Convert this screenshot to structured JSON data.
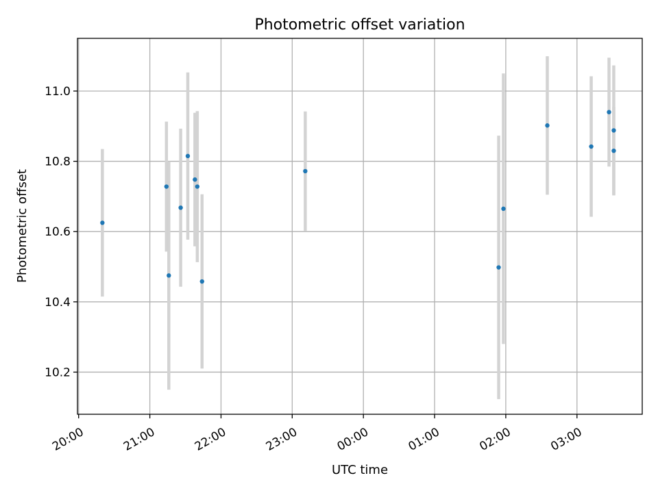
{
  "chart_data": {
    "type": "scatter",
    "title": "Photometric offset variation",
    "xlabel": "UTC time",
    "ylabel": "Photometric offset",
    "x_scale": "time",
    "x_ticks": [
      {
        "t": "20:00",
        "label": "20:00"
      },
      {
        "t": "21:00",
        "label": "21:00"
      },
      {
        "t": "22:00",
        "label": "22:00"
      },
      {
        "t": "23:00",
        "label": "23:00"
      },
      {
        "t": "00:00",
        "label": "00:00"
      },
      {
        "t": "01:00",
        "label": "01:00"
      },
      {
        "t": "02:00",
        "label": "02:00"
      },
      {
        "t": "03:00",
        "label": "03:00"
      }
    ],
    "xlim": [
      "19:59",
      "03:55"
    ],
    "ylim": [
      10.08,
      11.15
    ],
    "y_ticks": [
      10.2,
      10.4,
      10.6,
      10.8,
      11.0
    ],
    "y_tick_labels": [
      "10.2",
      "10.4",
      "10.6",
      "10.8",
      "11.0"
    ],
    "grid": true,
    "marker_color": "#1f77b4",
    "errorbar_color": "#d3d3d3",
    "points": [
      {
        "t": "20:20",
        "y": 10.625,
        "err": 0.21
      },
      {
        "t": "21:14",
        "y": 10.728,
        "err": 0.185
      },
      {
        "t": "21:16",
        "y": 10.475,
        "err": 0.325
      },
      {
        "t": "21:26",
        "y": 10.668,
        "err": 0.225
      },
      {
        "t": "21:32",
        "y": 10.815,
        "err": 0.238
      },
      {
        "t": "21:38",
        "y": 10.748,
        "err": 0.19
      },
      {
        "t": "21:40",
        "y": 10.728,
        "err": 0.215
      },
      {
        "t": "21:44",
        "y": 10.458,
        "err": 0.248
      },
      {
        "t": "23:11",
        "y": 10.772,
        "err": 0.17
      },
      {
        "t": "01:54",
        "y": 10.498,
        "err": 0.375
      },
      {
        "t": "01:58",
        "y": 10.665,
        "err": 0.385
      },
      {
        "t": "02:35",
        "y": 10.902,
        "err": 0.197
      },
      {
        "t": "03:12",
        "y": 10.842,
        "err": 0.2
      },
      {
        "t": "03:27",
        "y": 10.94,
        "err": 0.155
      },
      {
        "t": "03:31",
        "y": 10.83,
        "err": 0.125
      },
      {
        "t": "03:31",
        "y": 10.888,
        "err": 0.185
      }
    ]
  }
}
